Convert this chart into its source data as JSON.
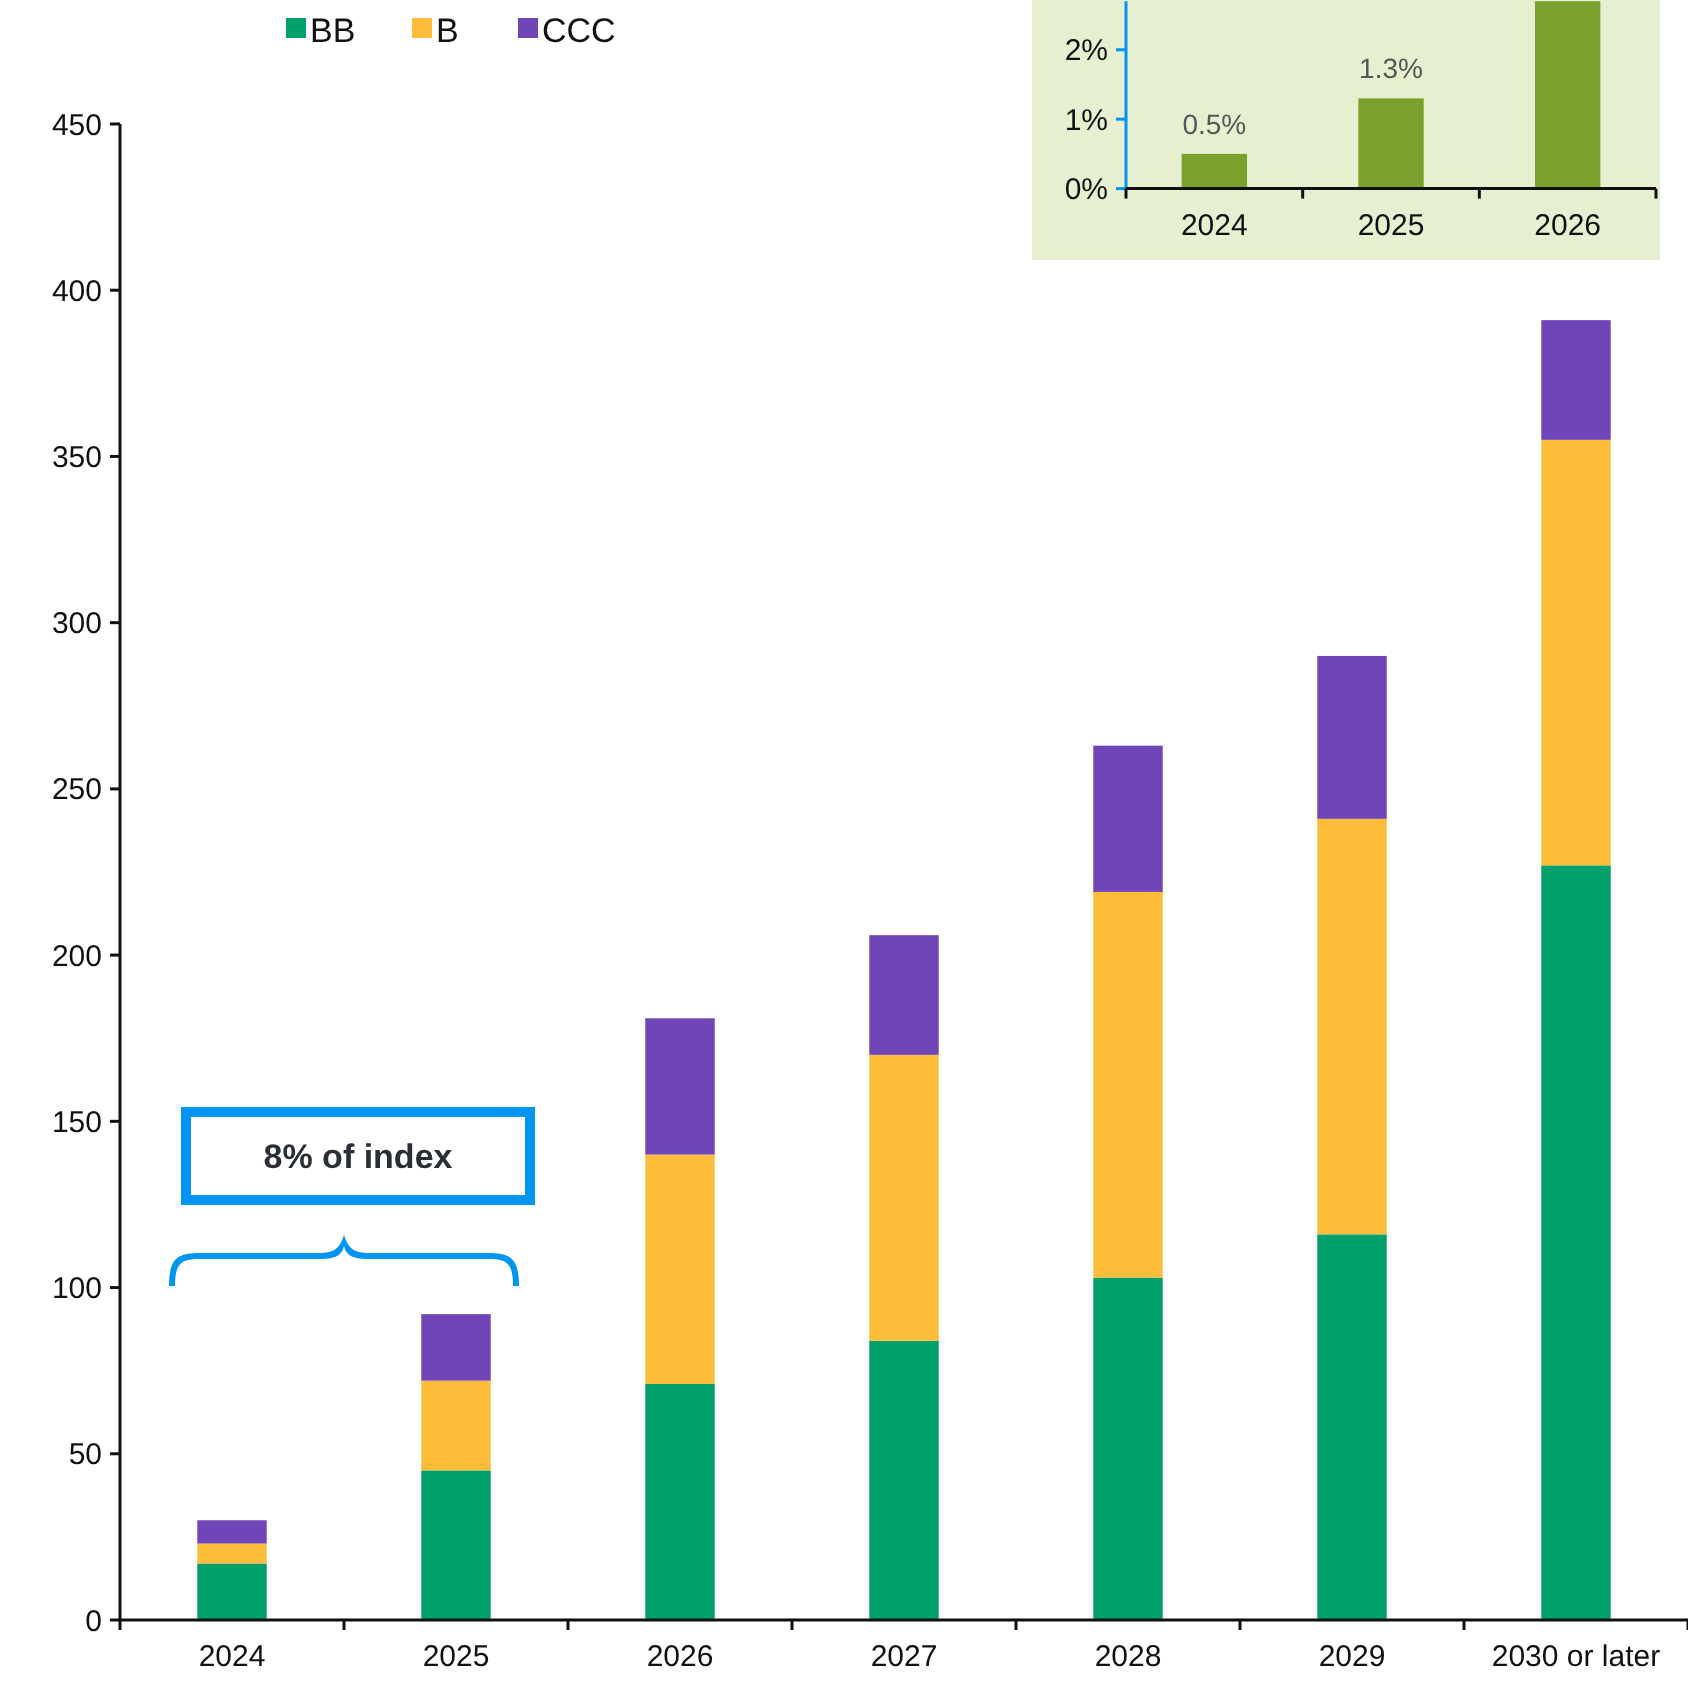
{
  "chart_data": [
    {
      "type": "bar",
      "stacked": true,
      "categories": [
        "2024",
        "2025",
        "2026",
        "2027",
        "2028",
        "2029",
        "2030 or later"
      ],
      "series": [
        {
          "name": "BB",
          "color": "#00a06a",
          "values": [
            17,
            45,
            71,
            84,
            103,
            116,
            227
          ]
        },
        {
          "name": "B",
          "color": "#fdbd3a",
          "values": [
            6,
            27,
            69,
            86,
            116,
            125,
            128
          ]
        },
        {
          "name": "CCC",
          "color": "#6f45b8",
          "values": [
            7,
            20,
            41,
            36,
            44,
            49,
            36
          ]
        }
      ],
      "ylim": [
        0,
        450
      ],
      "yticks": [
        0,
        50,
        100,
        150,
        200,
        250,
        300,
        350,
        400,
        450
      ],
      "grid": false,
      "legend": "top",
      "annotations": [
        "8% of index"
      ]
    },
    {
      "type": "bar",
      "categories": [
        "2024",
        "2025",
        "2026"
      ],
      "values": [
        0.5,
        1.3,
        2.7
      ],
      "color": "#7aa02e",
      "ylim": [
        0,
        2.7
      ],
      "yticks": [
        {
          "value": 0,
          "label": "0%"
        },
        {
          "value": 1,
          "label": "1%"
        },
        {
          "value": 2,
          "label": "2%"
        }
      ],
      "value_labels": [
        "0.5%",
        "1.3%",
        null
      ],
      "grid": false
    }
  ]
}
